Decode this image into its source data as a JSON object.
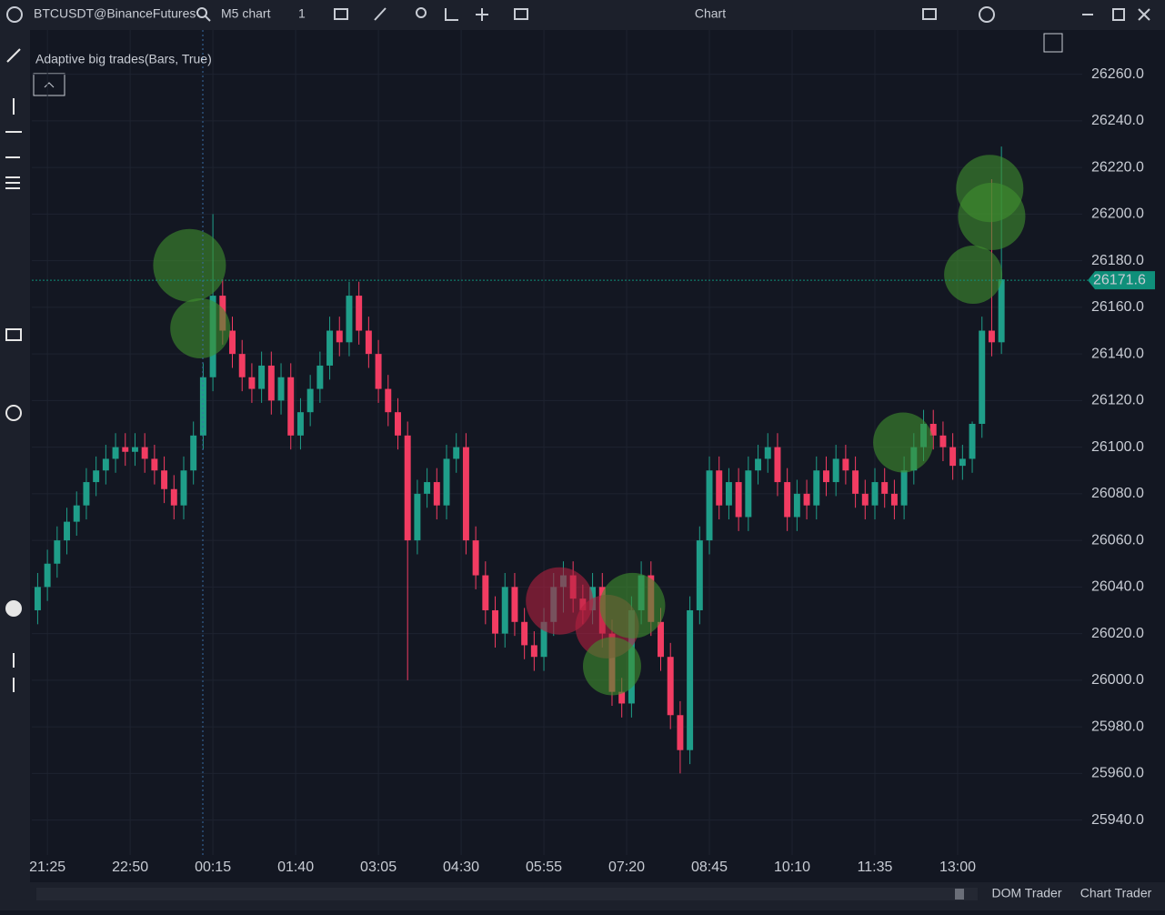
{
  "ui": {
    "symbol": "BTCUSDT@BinanceFutures",
    "timeframe": "M5 chart",
    "chart_count": "1",
    "window_title": "Chart",
    "tabs": [
      "DOM Trader",
      "Chart Trader"
    ]
  },
  "chart_data": {
    "type": "candlestick",
    "indicator": {
      "label": "Adaptive big trades(Bars, True)",
      "x": [
        146,
        157,
        526,
        575,
        601,
        580,
        879,
        968,
        970,
        951
      ],
      "y": [
        26178,
        26151,
        26034,
        26023,
        26032,
        26006,
        26102,
        26211,
        26199,
        26174
      ],
      "size": [
        40,
        33,
        37,
        35,
        36,
        32,
        33,
        37,
        37,
        32
      ],
      "colors": [
        "#3f8f2f",
        "#3f8f2f",
        "#b3203f",
        "#b3203f",
        "#3f8f2f",
        "#3f8f2f",
        "#3f8f2f",
        "#3f8f2f",
        "#3f8f2f",
        "#3f8f2f"
      ]
    },
    "x": [
      -10,
      0,
      10,
      20,
      30,
      40,
      50,
      60,
      70,
      80,
      90,
      100,
      110,
      120,
      130,
      140,
      150,
      160,
      170,
      180,
      190,
      200,
      210,
      220,
      230,
      240,
      250,
      260,
      270,
      280,
      290,
      300,
      310,
      320,
      330,
      340,
      350,
      360,
      370,
      380,
      390,
      400,
      410,
      420,
      430,
      440,
      450,
      460,
      470,
      480,
      490,
      500,
      510,
      520,
      530,
      540,
      550,
      560,
      570,
      580,
      590,
      600,
      610,
      620,
      630,
      640,
      650,
      660,
      670,
      680,
      690,
      700,
      710,
      720,
      730,
      740,
      750,
      760,
      770,
      780,
      790,
      800,
      810,
      820,
      830,
      840,
      850,
      860,
      870,
      880,
      890,
      900,
      910,
      920,
      930,
      940,
      950,
      960,
      970,
      980
    ],
    "open": [
      26030,
      26040,
      26050,
      26060,
      26068,
      26075,
      26085,
      26090,
      26095,
      26100,
      26098,
      26100,
      26095,
      26090,
      26082,
      26075,
      26090,
      26105,
      26130,
      26165,
      26150,
      26140,
      26130,
      26125,
      26135,
      26120,
      26130,
      26105,
      26115,
      26125,
      26135,
      26150,
      26145,
      26165,
      26150,
      26140,
      26125,
      26115,
      26105,
      26060,
      26080,
      26085,
      26075,
      26095,
      26100,
      26060,
      26045,
      26030,
      26020,
      26040,
      26025,
      26015,
      26010,
      26025,
      26040,
      26045,
      26035,
      26030,
      26040,
      26020,
      25995,
      25990,
      26030,
      26045,
      26025,
      26010,
      25985,
      25970,
      26030,
      26060,
      26090,
      26075,
      26085,
      26070,
      26090,
      26095,
      26100,
      26085,
      26070,
      26080,
      26075,
      26090,
      26085,
      26095,
      26090,
      26080,
      26075,
      26085,
      26080,
      26075,
      26090,
      26100,
      26110,
      26105,
      26100,
      26092,
      26095,
      26110,
      26150,
      26145
    ],
    "high": [
      26046,
      26056,
      26066,
      26074,
      26081,
      26091,
      26096,
      26101,
      26106,
      26106,
      26106,
      26106,
      26101,
      26096,
      26088,
      26096,
      26111,
      26136,
      26200,
      26172,
      26156,
      26146,
      26136,
      26141,
      26141,
      26136,
      26136,
      26121,
      26131,
      26141,
      26156,
      26156,
      26171,
      26171,
      26156,
      26146,
      26131,
      26121,
      26111,
      26086,
      26091,
      26091,
      26101,
      26106,
      26106,
      26066,
      26051,
      26036,
      26046,
      26046,
      26031,
      26021,
      26031,
      26046,
      26051,
      26051,
      26041,
      26046,
      26046,
      26026,
      26001,
      26036,
      26051,
      26051,
      26031,
      26016,
      25991,
      26036,
      26066,
      26096,
      26096,
      26091,
      26091,
      26096,
      26101,
      26106,
      26106,
      26091,
      26086,
      26086,
      26096,
      26096,
      26101,
      26101,
      26096,
      26086,
      26091,
      26091,
      26086,
      26096,
      26106,
      26116,
      26116,
      26111,
      26106,
      26101,
      26111,
      26156,
      26215,
      26229
    ],
    "low": [
      26024,
      26034,
      26044,
      26054,
      26062,
      26069,
      26079,
      26084,
      26089,
      26092,
      26092,
      26089,
      26084,
      26076,
      26069,
      26069,
      26084,
      26099,
      26124,
      26144,
      26134,
      26124,
      26119,
      26119,
      26114,
      26114,
      26099,
      26099,
      26109,
      26119,
      26129,
      26139,
      26139,
      26144,
      26134,
      26119,
      26109,
      26099,
      26000,
      26054,
      26074,
      26069,
      26069,
      26089,
      26054,
      26039,
      26024,
      26014,
      26014,
      26019,
      26009,
      26004,
      26004,
      26019,
      26029,
      26029,
      26024,
      26024,
      26014,
      25989,
      25984,
      25984,
      26024,
      26019,
      26004,
      25979,
      25960,
      25964,
      26024,
      26054,
      26069,
      26069,
      26064,
      26064,
      26084,
      26089,
      26079,
      26064,
      26064,
      26069,
      26069,
      26079,
      26079,
      26084,
      26074,
      26069,
      26069,
      26074,
      26069,
      26069,
      26084,
      26094,
      26099,
      26094,
      26086,
      26086,
      26089,
      26104,
      26139,
      26140
    ],
    "close": [
      26040,
      26050,
      26060,
      26068,
      26075,
      26085,
      26090,
      26095,
      26100,
      26098,
      26100,
      26095,
      26090,
      26082,
      26075,
      26090,
      26105,
      26130,
      26165,
      26150,
      26140,
      26130,
      26125,
      26135,
      26120,
      26130,
      26105,
      26115,
      26125,
      26135,
      26150,
      26145,
      26165,
      26150,
      26140,
      26125,
      26115,
      26105,
      26060,
      26080,
      26085,
      26075,
      26095,
      26100,
      26060,
      26045,
      26030,
      26020,
      26040,
      26025,
      26015,
      26010,
      26025,
      26040,
      26045,
      26035,
      26030,
      26040,
      26020,
      25995,
      25990,
      26030,
      26045,
      26025,
      26010,
      25985,
      25970,
      26030,
      26060,
      26090,
      26075,
      26085,
      26070,
      26090,
      26095,
      26100,
      26085,
      26070,
      26080,
      26075,
      26090,
      26085,
      26095,
      26090,
      26080,
      26075,
      26085,
      26080,
      26075,
      26090,
      26100,
      26110,
      26105,
      26100,
      26092,
      26095,
      26110,
      26150,
      26145,
      26172
    ],
    "up_color": "#1f9e89",
    "down_color": "#f23c62",
    "last_price": 26171.6,
    "last_price_color": "#0f8f7a",
    "xlim": [
      -16,
      1063
    ],
    "xticks": [
      {
        "value": 0,
        "label": "21:25"
      },
      {
        "value": 85,
        "label": "22:50"
      },
      {
        "value": 170,
        "label": "00:15"
      },
      {
        "value": 255,
        "label": "01:40"
      },
      {
        "value": 340,
        "label": "03:05"
      },
      {
        "value": 425,
        "label": "04:30"
      },
      {
        "value": 510,
        "label": "05:55"
      },
      {
        "value": 595,
        "label": "07:20"
      },
      {
        "value": 680,
        "label": "08:45"
      },
      {
        "value": 765,
        "label": "10:10"
      },
      {
        "value": 850,
        "label": "11:35"
      },
      {
        "value": 935,
        "label": "13:00"
      }
    ],
    "ylim": [
      25925,
      26279
    ],
    "yticks": [
      {
        "value": 25940,
        "label": "25940.0"
      },
      {
        "value": 25960,
        "label": "25960.0"
      },
      {
        "value": 25980,
        "label": "25980.0"
      },
      {
        "value": 26000,
        "label": "26000.0"
      },
      {
        "value": 26020,
        "label": "26020.0"
      },
      {
        "value": 26040,
        "label": "26040.0"
      },
      {
        "value": 26060,
        "label": "26060.0"
      },
      {
        "value": 26080,
        "label": "26080.0"
      },
      {
        "value": 26100,
        "label": "26100.0"
      },
      {
        "value": 26120,
        "label": "26120.0"
      },
      {
        "value": 26140,
        "label": "26140.0"
      },
      {
        "value": 26160,
        "label": "26160.0"
      },
      {
        "value": 26180,
        "label": "26180.0"
      },
      {
        "value": 26200,
        "label": "26200.0"
      },
      {
        "value": 26220,
        "label": "26220.0"
      },
      {
        "value": 26240,
        "label": "26240.0"
      },
      {
        "value": 26260,
        "label": "26260.0"
      }
    ],
    "grid": true
  }
}
